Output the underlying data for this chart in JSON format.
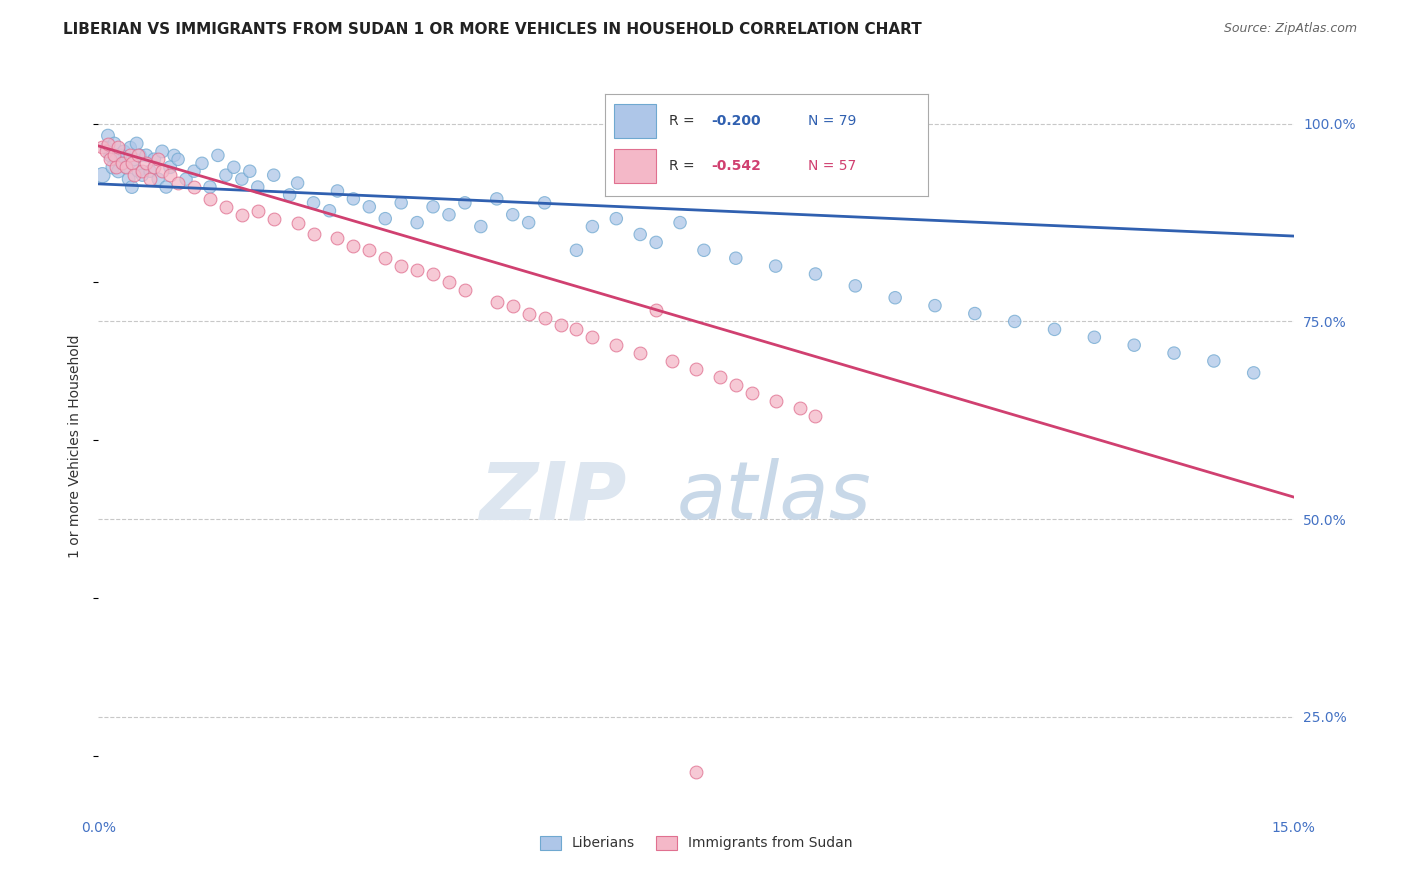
{
  "title": "LIBERIAN VS IMMIGRANTS FROM SUDAN 1 OR MORE VEHICLES IN HOUSEHOLD CORRELATION CHART",
  "source": "Source: ZipAtlas.com",
  "ylabel": "1 or more Vehicles in Household",
  "xmin": 0.0,
  "xmax": 0.15,
  "ymin": 0.13,
  "ymax": 1.055,
  "liberian_R": -0.2,
  "liberian_N": 79,
  "sudan_R": -0.542,
  "sudan_N": 57,
  "liberian_color": "#aec6e8",
  "liberian_edge": "#6fa8d0",
  "sudan_color": "#f4b8c8",
  "sudan_edge": "#e07090",
  "liberian_line_color": "#3060b0",
  "sudan_line_color": "#d04070",
  "background_color": "#ffffff",
  "grid_color": "#c8c8c8",
  "title_color": "#222222",
  "axis_label_color": "#4472c4",
  "lib_trend_y0": 0.924,
  "lib_trend_y1": 0.858,
  "sud_trend_y0": 0.972,
  "sud_trend_y1": 0.528,
  "liberian_x": [
    0.0005,
    0.001,
    0.0012,
    0.0015,
    0.0018,
    0.002,
    0.0022,
    0.0025,
    0.0028,
    0.003,
    0.0032,
    0.0035,
    0.0038,
    0.004,
    0.0042,
    0.0045,
    0.0048,
    0.005,
    0.0052,
    0.0055,
    0.006,
    0.0065,
    0.007,
    0.0075,
    0.008,
    0.0085,
    0.009,
    0.0095,
    0.01,
    0.011,
    0.012,
    0.013,
    0.014,
    0.015,
    0.016,
    0.017,
    0.018,
    0.019,
    0.02,
    0.022,
    0.024,
    0.025,
    0.027,
    0.029,
    0.03,
    0.032,
    0.034,
    0.036,
    0.038,
    0.04,
    0.042,
    0.044,
    0.046,
    0.048,
    0.05,
    0.052,
    0.054,
    0.056,
    0.06,
    0.062,
    0.065,
    0.068,
    0.07,
    0.073,
    0.076,
    0.08,
    0.085,
    0.09,
    0.095,
    0.1,
    0.105,
    0.11,
    0.115,
    0.12,
    0.125,
    0.13,
    0.135,
    0.14,
    0.145
  ],
  "liberian_y": [
    0.935,
    0.97,
    0.985,
    0.96,
    0.945,
    0.975,
    0.955,
    0.94,
    0.96,
    0.95,
    0.965,
    0.945,
    0.93,
    0.97,
    0.92,
    0.955,
    0.975,
    0.94,
    0.96,
    0.935,
    0.96,
    0.94,
    0.955,
    0.93,
    0.965,
    0.92,
    0.945,
    0.96,
    0.955,
    0.93,
    0.94,
    0.95,
    0.92,
    0.96,
    0.935,
    0.945,
    0.93,
    0.94,
    0.92,
    0.935,
    0.91,
    0.925,
    0.9,
    0.89,
    0.915,
    0.905,
    0.895,
    0.88,
    0.9,
    0.875,
    0.895,
    0.885,
    0.9,
    0.87,
    0.905,
    0.885,
    0.875,
    0.9,
    0.84,
    0.87,
    0.88,
    0.86,
    0.85,
    0.875,
    0.84,
    0.83,
    0.82,
    0.81,
    0.795,
    0.78,
    0.77,
    0.76,
    0.75,
    0.74,
    0.73,
    0.72,
    0.71,
    0.7,
    0.685
  ],
  "liberian_sz": [
    120,
    80,
    85,
    90,
    95,
    85,
    80,
    90,
    85,
    80,
    85,
    80,
    85,
    80,
    85,
    80,
    85,
    80,
    85,
    80,
    85,
    80,
    85,
    80,
    85,
    80,
    85,
    80,
    80,
    80,
    80,
    80,
    80,
    80,
    80,
    80,
    80,
    80,
    80,
    80,
    80,
    80,
    80,
    80,
    80,
    80,
    80,
    80,
    80,
    80,
    80,
    80,
    80,
    80,
    80,
    80,
    80,
    80,
    80,
    80,
    80,
    80,
    80,
    80,
    80,
    80,
    80,
    80,
    80,
    80,
    80,
    80,
    80,
    80,
    80,
    80,
    80,
    80,
    80
  ],
  "sudan_x": [
    0.0005,
    0.001,
    0.0012,
    0.0015,
    0.002,
    0.0022,
    0.0025,
    0.003,
    0.0035,
    0.004,
    0.0042,
    0.0045,
    0.005,
    0.0055,
    0.006,
    0.0065,
    0.007,
    0.0075,
    0.008,
    0.009,
    0.01,
    0.012,
    0.014,
    0.016,
    0.018,
    0.02,
    0.022,
    0.025,
    0.027,
    0.03,
    0.032,
    0.034,
    0.036,
    0.038,
    0.04,
    0.042,
    0.044,
    0.046,
    0.05,
    0.052,
    0.054,
    0.056,
    0.058,
    0.06,
    0.062,
    0.065,
    0.068,
    0.07,
    0.072,
    0.075,
    0.078,
    0.08,
    0.082,
    0.085,
    0.088,
    0.09,
    0.075
  ],
  "sudan_y": [
    0.97,
    0.965,
    0.975,
    0.955,
    0.96,
    0.945,
    0.97,
    0.95,
    0.945,
    0.96,
    0.95,
    0.935,
    0.96,
    0.94,
    0.95,
    0.93,
    0.945,
    0.955,
    0.94,
    0.935,
    0.925,
    0.92,
    0.905,
    0.895,
    0.885,
    0.89,
    0.88,
    0.875,
    0.86,
    0.855,
    0.845,
    0.84,
    0.83,
    0.82,
    0.815,
    0.81,
    0.8,
    0.79,
    0.775,
    0.77,
    0.76,
    0.755,
    0.745,
    0.74,
    0.73,
    0.72,
    0.71,
    0.765,
    0.7,
    0.69,
    0.68,
    0.67,
    0.66,
    0.65,
    0.64,
    0.63,
    0.18
  ]
}
